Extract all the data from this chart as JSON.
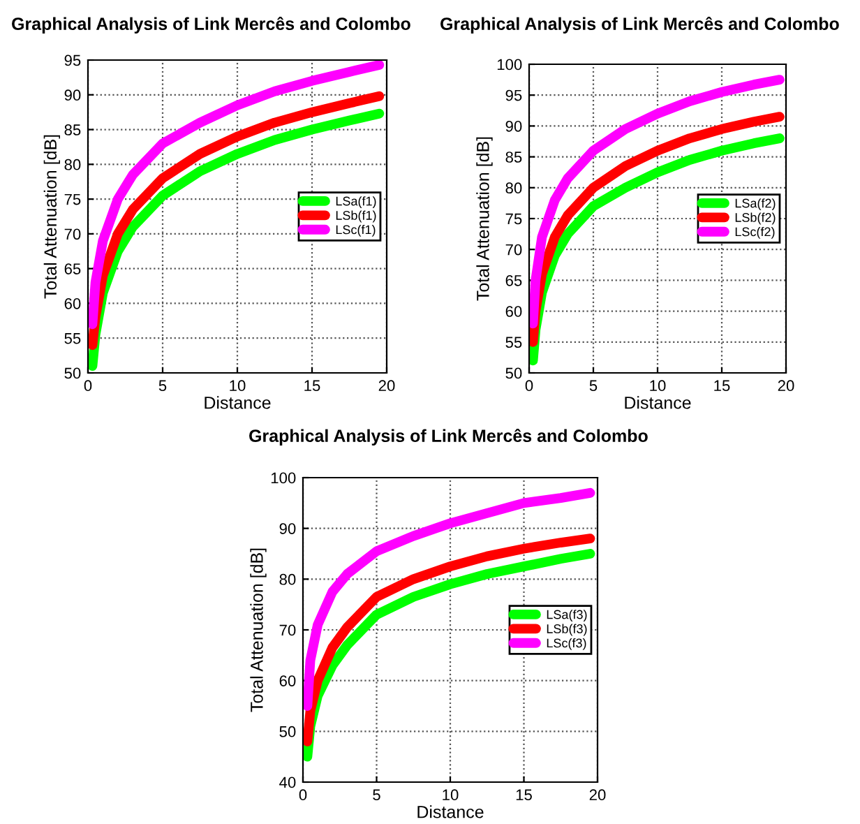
{
  "chart_data": [
    {
      "type": "line",
      "title": "Graphical Analysis of Link Mercês and Colombo",
      "xlabel": "Distance",
      "ylabel": "Total Attenuation [dB]",
      "xlim": [
        0,
        20
      ],
      "xticks": [
        0,
        5,
        10,
        15,
        20
      ],
      "ylim": [
        50,
        95
      ],
      "yticks": [
        50,
        55,
        60,
        65,
        70,
        75,
        80,
        85,
        90,
        95
      ],
      "grid": true,
      "legend": "right",
      "x": [
        0.3,
        0.5,
        1,
        2,
        3,
        5,
        7.5,
        10,
        12.5,
        15,
        17.5,
        19.5
      ],
      "series": [
        {
          "name": "LSa(f1)",
          "color": "#00ff00",
          "values": [
            51,
            55.5,
            61.5,
            67.5,
            71,
            75.5,
            79,
            81.5,
            83.5,
            85,
            86.3,
            87.3
          ]
        },
        {
          "name": "LSb(f1)",
          "color": "#ff0000",
          "values": [
            54,
            58,
            64,
            70,
            73.5,
            78,
            81.5,
            84,
            86,
            87.5,
            88.8,
            89.8
          ]
        },
        {
          "name": "LSc(f1)",
          "color": "#ff00ff",
          "values": [
            57,
            63,
            69,
            75,
            78.5,
            83,
            86,
            88.5,
            90.5,
            92,
            93.3,
            94.3
          ]
        }
      ]
    },
    {
      "type": "line",
      "title": "Graphical Analysis of Link Mercês and Colombo",
      "xlabel": "Distance",
      "ylabel": "Total Attenuation [dB]",
      "xlim": [
        0,
        20
      ],
      "xticks": [
        0,
        5,
        10,
        15,
        20
      ],
      "ylim": [
        50,
        100
      ],
      "yticks": [
        50,
        55,
        60,
        65,
        70,
        75,
        80,
        85,
        90,
        95,
        100
      ],
      "grid": true,
      "legend": "right",
      "x": [
        0.3,
        0.5,
        1,
        2,
        3,
        5,
        7.5,
        10,
        12.5,
        15,
        17.5,
        19.5
      ],
      "series": [
        {
          "name": "LSa(f2)",
          "color": "#00ff00",
          "values": [
            52,
            57,
            63,
            69,
            72.5,
            77,
            80,
            82.5,
            84.5,
            86,
            87.2,
            88
          ]
        },
        {
          "name": "LSb(f2)",
          "color": "#ff0000",
          "values": [
            55,
            60,
            66,
            72,
            75.5,
            80,
            83.5,
            86,
            88,
            89.5,
            90.7,
            91.5
          ]
        },
        {
          "name": "LSc(f2)",
          "color": "#ff00ff",
          "values": [
            58,
            65,
            72,
            78,
            81.5,
            86,
            89.5,
            92,
            94,
            95.5,
            96.7,
            97.5
          ]
        }
      ]
    },
    {
      "type": "line",
      "title": "Graphical Analysis of Link Mercês and Colombo",
      "xlabel": "Distance",
      "ylabel": "Total Attenuation [dB]",
      "xlim": [
        0,
        20
      ],
      "xticks": [
        0,
        5,
        10,
        15,
        20
      ],
      "ylim": [
        40,
        100
      ],
      "yticks": [
        40,
        50,
        60,
        70,
        80,
        90,
        100
      ],
      "grid": true,
      "legend": "right",
      "x": [
        0.3,
        0.5,
        1,
        2,
        3,
        5,
        7.5,
        10,
        12.5,
        15,
        17.5,
        19.5
      ],
      "series": [
        {
          "name": "LSa(f3)",
          "color": "#00ff00",
          "values": [
            45,
            51,
            57,
            63,
            67,
            73,
            76.5,
            79,
            81,
            82.5,
            84,
            85
          ]
        },
        {
          "name": "LSb(f3)",
          "color": "#ff0000",
          "values": [
            48,
            54,
            60,
            66.5,
            70.5,
            76.5,
            80,
            82.5,
            84.5,
            86,
            87.2,
            88
          ]
        },
        {
          "name": "LSc(f3)",
          "color": "#ff00ff",
          "values": [
            55,
            64,
            71,
            77.5,
            81,
            85.5,
            88.5,
            91,
            93,
            95,
            96,
            97
          ]
        }
      ]
    }
  ]
}
